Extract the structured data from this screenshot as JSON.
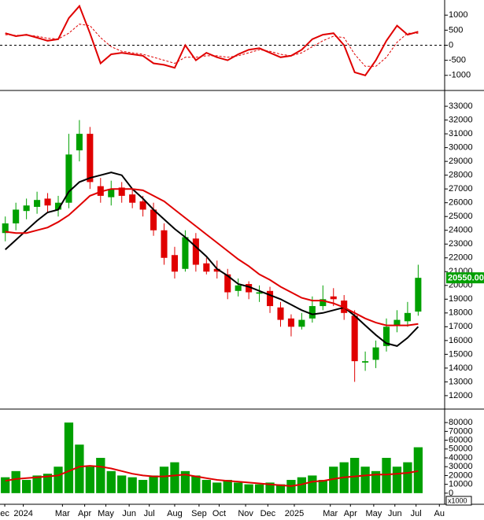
{
  "chart_data": [
    {
      "type": "line",
      "ylim": [
        -1450,
        1450
      ],
      "yticks": [
        -1000,
        -500,
        0,
        500,
        1000
      ],
      "xlim": [
        0,
        42
      ],
      "zero_line": true,
      "series": [
        {
          "color": "#e00000",
          "dashed": false,
          "values": [
            400,
            300,
            350,
            250,
            150,
            200,
            900,
            1300,
            400,
            -600,
            -300,
            -250,
            -300,
            -350,
            -600,
            -650,
            -750,
            0,
            -500,
            -250,
            -400,
            -500,
            -300,
            -150,
            -100,
            -250,
            -400,
            -350,
            -150,
            200,
            350,
            400,
            0,
            -900,
            -1000,
            -500,
            150,
            650,
            350,
            450
          ]
        },
        {
          "color": "#e00000",
          "dashed": true,
          "values": [
            350,
            330,
            330,
            300,
            230,
            210,
            400,
            700,
            650,
            250,
            -50,
            -200,
            -250,
            -300,
            -400,
            -500,
            -600,
            -400,
            -400,
            -350,
            -350,
            -400,
            -350,
            -250,
            -150,
            -200,
            -300,
            -350,
            -250,
            -50,
            150,
            300,
            250,
            -300,
            -700,
            -700,
            -400,
            100,
            400,
            400
          ]
        }
      ]
    },
    {
      "type": "candlestick",
      "ylim": [
        11025,
        33975
      ],
      "xlim": [
        0,
        42
      ],
      "yticks": [
        12000,
        13000,
        14000,
        15000,
        16000,
        17000,
        18000,
        19000,
        20000,
        21000,
        22000,
        23000,
        24000,
        25000,
        26000,
        27000,
        28000,
        29000,
        30000,
        31000,
        32000,
        33000
      ],
      "up_color": "#00a000",
      "down_color": "#e00000",
      "open": [
        23800,
        24500,
        25400,
        25700,
        26300,
        25500,
        26000,
        29800,
        31000,
        27200,
        26400,
        27100,
        26600,
        26100,
        25500,
        24000,
        22200,
        21200,
        23400,
        21600,
        21200,
        20800,
        19600,
        20100,
        19400,
        19600,
        18400,
        17600,
        17000,
        17600,
        18500,
        19200,
        18900,
        17800,
        14400,
        14600,
        15600,
        17100,
        17400,
        18100
      ],
      "high": [
        25000,
        26000,
        26300,
        26800,
        26700,
        26500,
        31000,
        32000,
        31500,
        27800,
        27600,
        27500,
        27000,
        26500,
        26000,
        24500,
        22800,
        24000,
        23800,
        22000,
        21800,
        21200,
        20500,
        20300,
        20000,
        19900,
        18800,
        17900,
        18000,
        19200,
        20000,
        19800,
        19300,
        18200,
        15200,
        16000,
        17600,
        18200,
        18800,
        21500
      ],
      "low": [
        23200,
        24000,
        24800,
        25200,
        25300,
        25000,
        25600,
        29000,
        27000,
        26000,
        25800,
        26000,
        25600,
        25000,
        23600,
        21500,
        20500,
        21000,
        21000,
        20800,
        20500,
        19000,
        19200,
        19000,
        18800,
        18000,
        17000,
        16300,
        16800,
        17300,
        18200,
        18500,
        17500,
        13000,
        13800,
        14000,
        15200,
        16600,
        17000,
        17800
      ],
      "close": [
        24500,
        25500,
        25800,
        26200,
        25800,
        26000,
        29500,
        31000,
        27500,
        26500,
        27000,
        26500,
        26000,
        25500,
        24000,
        22000,
        21000,
        23500,
        21500,
        21000,
        21000,
        19500,
        20000,
        19500,
        19500,
        18500,
        17500,
        17000,
        17500,
        18500,
        19000,
        19000,
        18000,
        14500,
        14500,
        15500,
        17000,
        17500,
        18000,
        20550
      ],
      "series": [
        {
          "color": "#000000",
          "values": [
            22600,
            23300,
            24000,
            24700,
            25300,
            25500,
            26800,
            27500,
            27800,
            28000,
            28200,
            28000,
            27000,
            26300,
            25500,
            24800,
            24100,
            23500,
            22800,
            22100,
            21200,
            20700,
            20100,
            19900,
            19600,
            19300,
            19000,
            18600,
            18200,
            17900,
            18000,
            18200,
            18400,
            17800,
            17100,
            16400,
            15800,
            15600,
            16200,
            17000
          ]
        },
        {
          "color": "#e00000",
          "values": [
            23900,
            23800,
            23800,
            24000,
            24200,
            24600,
            25100,
            25800,
            26500,
            26800,
            27000,
            27000,
            27000,
            26900,
            26500,
            26100,
            25500,
            24900,
            24300,
            23700,
            23100,
            22500,
            21900,
            21400,
            20800,
            20400,
            19900,
            19500,
            19100,
            18900,
            18900,
            18700,
            18400,
            18000,
            17600,
            17300,
            17100,
            17100,
            17100,
            17200
          ]
        }
      ],
      "price_marker": {
        "value": 20550,
        "label": "20550.00"
      }
    },
    {
      "type": "bar",
      "ylim": [
        -12600,
        93500
      ],
      "xlim": [
        0,
        42
      ],
      "unit_label": "x1000",
      "yticks": [
        0,
        10000,
        20000,
        30000,
        40000,
        50000,
        60000,
        70000,
        80000
      ],
      "color": "#00a000",
      "values": [
        18000,
        25000,
        15000,
        20000,
        22000,
        30000,
        80000,
        55000,
        30000,
        40000,
        25000,
        20000,
        18000,
        15000,
        20000,
        30000,
        35000,
        25000,
        20000,
        15000,
        12000,
        15000,
        12000,
        10000,
        10000,
        12000,
        10000,
        15000,
        18000,
        20000,
        15000,
        30000,
        35000,
        40000,
        30000,
        25000,
        40000,
        30000,
        35000,
        52000
      ],
      "series": [
        {
          "color": "#e00000",
          "values": [
            14000,
            16000,
            17000,
            18000,
            19000,
            20000,
            25000,
            30000,
            31000,
            30000,
            28000,
            25000,
            22000,
            20000,
            19000,
            19000,
            20000,
            21000,
            19000,
            17000,
            15000,
            14000,
            13000,
            12000,
            11000,
            10000,
            9000,
            8000,
            10000,
            13000,
            14000,
            16000,
            18000,
            19000,
            20000,
            21000,
            21000,
            22000,
            23000,
            25000
          ]
        }
      ],
      "xticks": [
        {
          "value": 0.45,
          "label": "ec"
        },
        {
          "value": 2.2,
          "label": "2024"
        },
        {
          "value": 5.9,
          "label": "Mar"
        },
        {
          "value": 8.0,
          "label": "Apr"
        },
        {
          "value": 10.0,
          "label": "May"
        },
        {
          "value": 12.2,
          "label": "Jun"
        },
        {
          "value": 14.1,
          "label": "Jul"
        },
        {
          "value": 16.5,
          "label": "Aug"
        },
        {
          "value": 18.8,
          "label": "Sep"
        },
        {
          "value": 20.7,
          "label": "Oct"
        },
        {
          "value": 23.2,
          "label": "Nov"
        },
        {
          "value": 25.3,
          "label": "Dec"
        },
        {
          "value": 27.8,
          "label": "2025"
        },
        {
          "value": 31.2,
          "label": "Mar"
        },
        {
          "value": 33.1,
          "label": "Apr"
        },
        {
          "value": 35.3,
          "label": "May"
        },
        {
          "value": 37.3,
          "label": "Jun"
        },
        {
          "value": 39.3,
          "label": "Jul"
        },
        {
          "value": 41.5,
          "label": "Au"
        }
      ]
    }
  ]
}
